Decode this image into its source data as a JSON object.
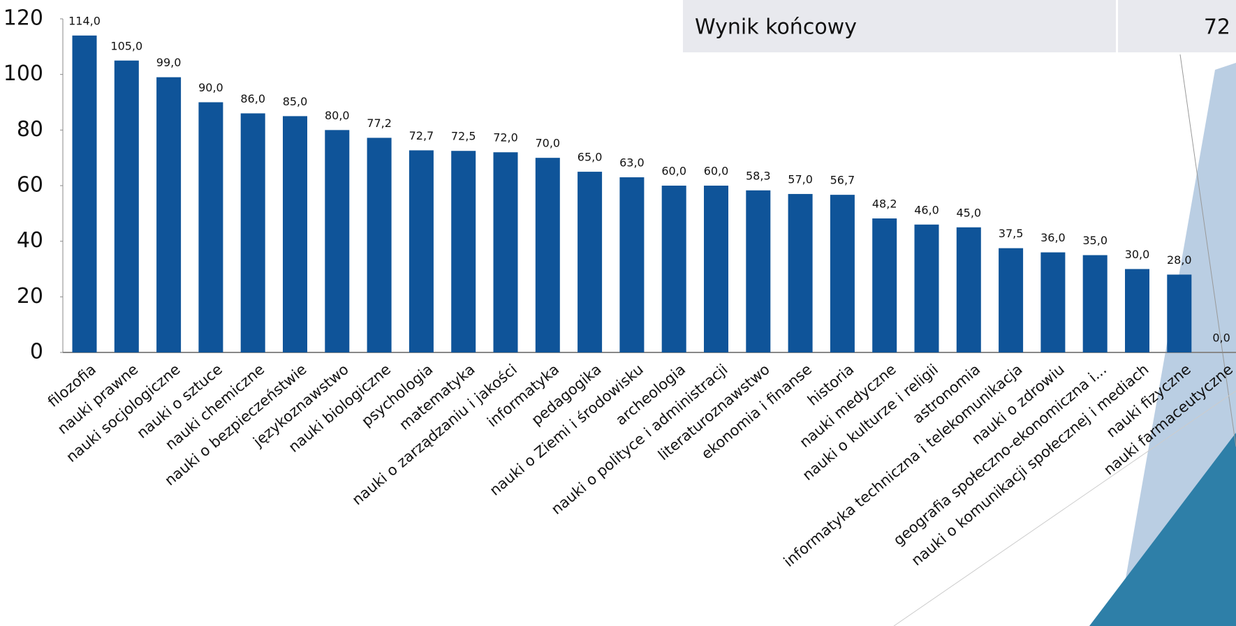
{
  "chart_data": {
    "type": "bar",
    "color": "#0f5499",
    "categories": [
      "filozofia",
      "nauki prawne",
      "nauki socjologiczne",
      "nauki o sztuce",
      "nauki chemiczne",
      "nauki o bezpieczeństwie",
      "językoznawstwo",
      "nauki biologiczne",
      "psychologia",
      "matematyka",
      "nauki o zarządzaniu i jakości",
      "informatyka",
      "pedagogika",
      "nauki o Ziemi i środowisku",
      "archeologia",
      "nauki o polityce i administracji",
      "literaturoznawstwo",
      "ekonomia i finanse",
      "historia",
      "nauki medyczne",
      "nauki o kulturze i religii",
      "astronomia",
      "informatyka techniczna i telekomunikacja",
      "nauki o zdrowiu",
      "geografia społeczno-ekonomiczna i...",
      "nauki o komunikacji społecznej i mediach",
      "nauki fizyczne",
      "nauki farmaceutyczne"
    ],
    "values": [
      114,
      105,
      99,
      90,
      86,
      85,
      80,
      77.2,
      72.7,
      72.5,
      72,
      70,
      65,
      63,
      60,
      60,
      58.3,
      57,
      56.7,
      48.2,
      46,
      45,
      37.5,
      36,
      35,
      30,
      28,
      0
    ],
    "value_labels": [
      "114,0",
      "105,0",
      "99,0",
      "90,0",
      "86,0",
      "85,0",
      "80,0",
      "77,2",
      "72,7",
      "72,5",
      "72,0",
      "70,0",
      "65,0",
      "63,0",
      "60,0",
      "60,0",
      "58,3",
      "57,0",
      "56,7",
      "48,2",
      "46,0",
      "45,0",
      "37,5",
      "36,0",
      "35,0",
      "30,0",
      "28,0",
      "0,0"
    ],
    "ylim": [
      0,
      120
    ],
    "yticks": [
      0,
      20,
      40,
      60,
      80,
      100,
      120
    ]
  },
  "summary": {
    "label": "Wynik końcowy",
    "value": "72"
  }
}
